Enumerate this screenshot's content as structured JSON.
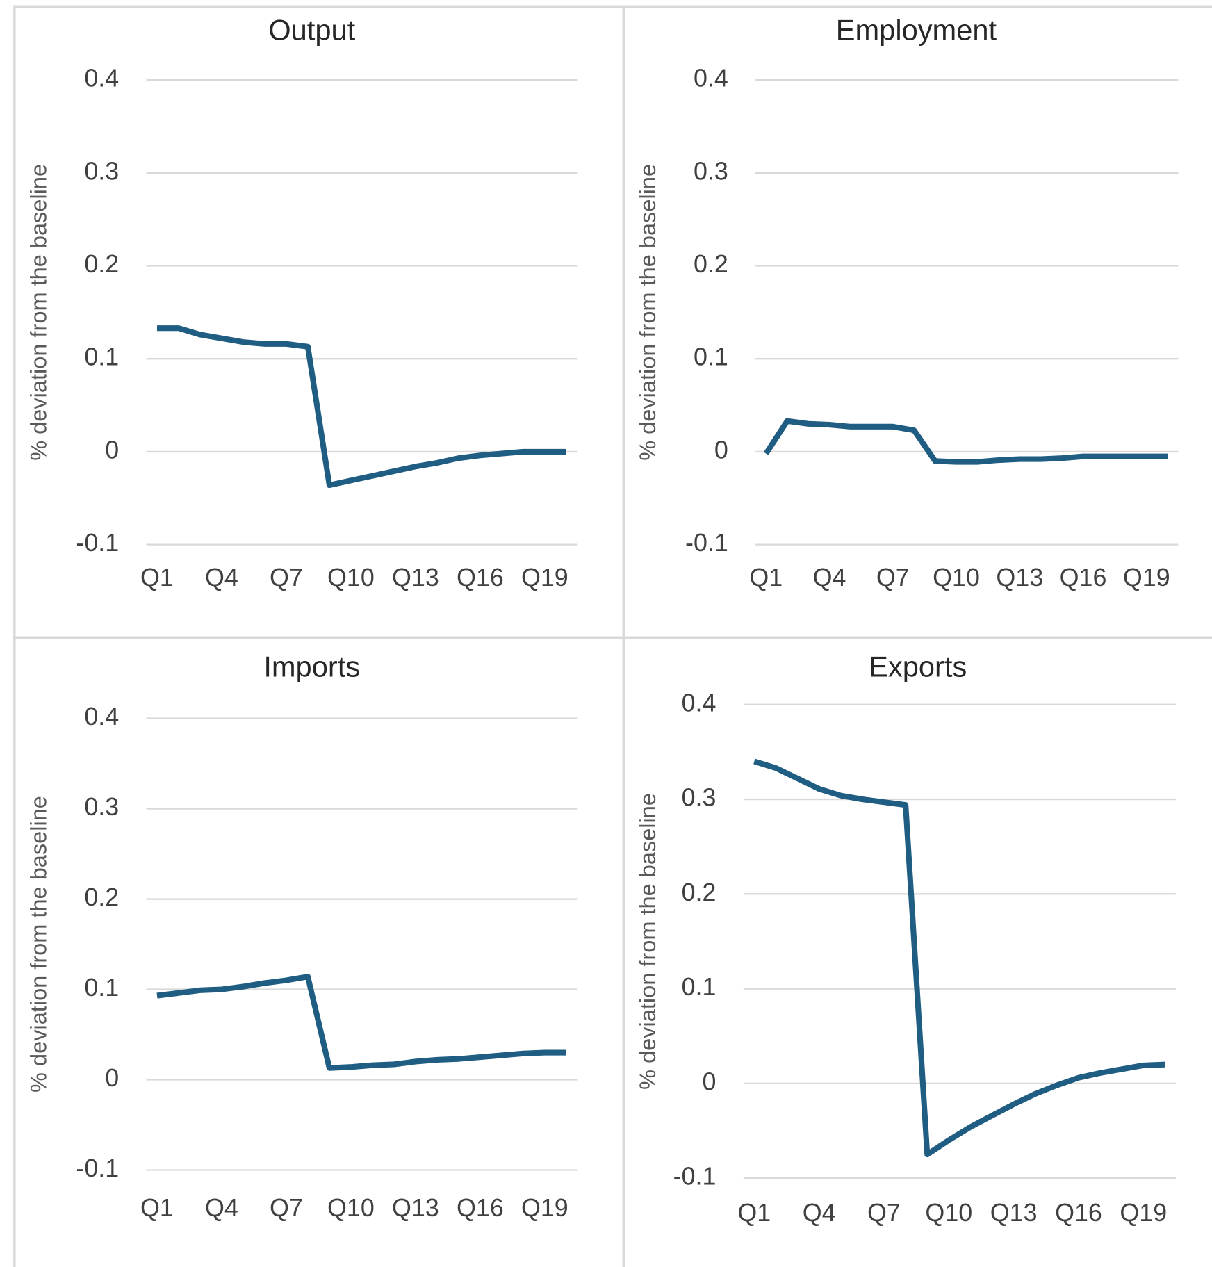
{
  "chart_data": [
    {
      "type": "line",
      "title": "Output",
      "y_label": "% deviation from the baseline",
      "categories": [
        "Q1",
        null,
        null,
        "Q4",
        null,
        null,
        "Q7",
        null,
        null,
        "Q10",
        null,
        null,
        "Q13",
        null,
        null,
        "Q16",
        null,
        null,
        "Q19",
        null
      ],
      "values": [
        0.133,
        0.133,
        0.126,
        0.122,
        0.118,
        0.116,
        0.116,
        0.113,
        -0.036,
        -0.031,
        -0.026,
        -0.021,
        -0.016,
        -0.012,
        -0.007,
        -0.004,
        -0.002,
        0,
        0,
        0
      ],
      "color": "#1f5d82",
      "ylim": [
        -0.1,
        0.4
      ],
      "yticks": [
        -0.1,
        0,
        0.1,
        0.2,
        0.3,
        0.4
      ],
      "grid": true
    },
    {
      "type": "line",
      "title": "Employment",
      "y_label": "% deviation from the baseline",
      "categories": [
        "Q1",
        null,
        null,
        "Q4",
        null,
        null,
        "Q7",
        null,
        null,
        "Q10",
        null,
        null,
        "Q13",
        null,
        null,
        "Q16",
        null,
        null,
        "Q19",
        null
      ],
      "values": [
        -0.002,
        0.033,
        0.03,
        0.029,
        0.027,
        0.027,
        0.027,
        0.023,
        -0.01,
        -0.011,
        -0.011,
        -0.009,
        -0.008,
        -0.008,
        -0.007,
        -0.005,
        -0.005,
        -0.005,
        -0.005,
        -0.005
      ],
      "color": "#1f5d82",
      "ylim": [
        -0.1,
        0.4
      ],
      "yticks": [
        -0.1,
        0,
        0.1,
        0.2,
        0.3,
        0.4
      ],
      "grid": true
    },
    {
      "type": "line",
      "title": "Imports",
      "y_label": "% deviation from the baseline",
      "categories": [
        "Q1",
        null,
        null,
        "Q4",
        null,
        null,
        "Q7",
        null,
        null,
        "Q10",
        null,
        null,
        "Q13",
        null,
        null,
        "Q16",
        null,
        null,
        "Q19",
        null
      ],
      "values": [
        0.093,
        0.096,
        0.099,
        0.1,
        0.103,
        0.107,
        0.11,
        0.114,
        0.013,
        0.014,
        0.016,
        0.017,
        0.02,
        0.022,
        0.023,
        0.025,
        0.027,
        0.029,
        0.03,
        0.03
      ],
      "color": "#1f5d82",
      "ylim": [
        -0.1,
        0.4
      ],
      "yticks": [
        -0.1,
        0,
        0.1,
        0.2,
        0.3,
        0.4
      ],
      "grid": true
    },
    {
      "type": "line",
      "title": "Exports",
      "y_label": "% deviation from the baseline",
      "categories": [
        "Q1",
        null,
        null,
        "Q4",
        null,
        null,
        "Q7",
        null,
        null,
        "Q10",
        null,
        null,
        "Q13",
        null,
        null,
        "Q16",
        null,
        null,
        "Q19",
        null
      ],
      "values": [
        0.34,
        0.333,
        0.322,
        0.311,
        0.304,
        0.3,
        0.297,
        0.294,
        -0.075,
        -0.06,
        -0.046,
        -0.034,
        -0.022,
        -0.011,
        -0.002,
        0.006,
        0.011,
        0.015,
        0.019,
        0.02
      ],
      "color": "#1f5d82",
      "ylim": [
        -0.1,
        0.4
      ],
      "yticks": [
        -0.1,
        0,
        0.1,
        0.2,
        0.3,
        0.4
      ],
      "grid": true
    }
  ]
}
